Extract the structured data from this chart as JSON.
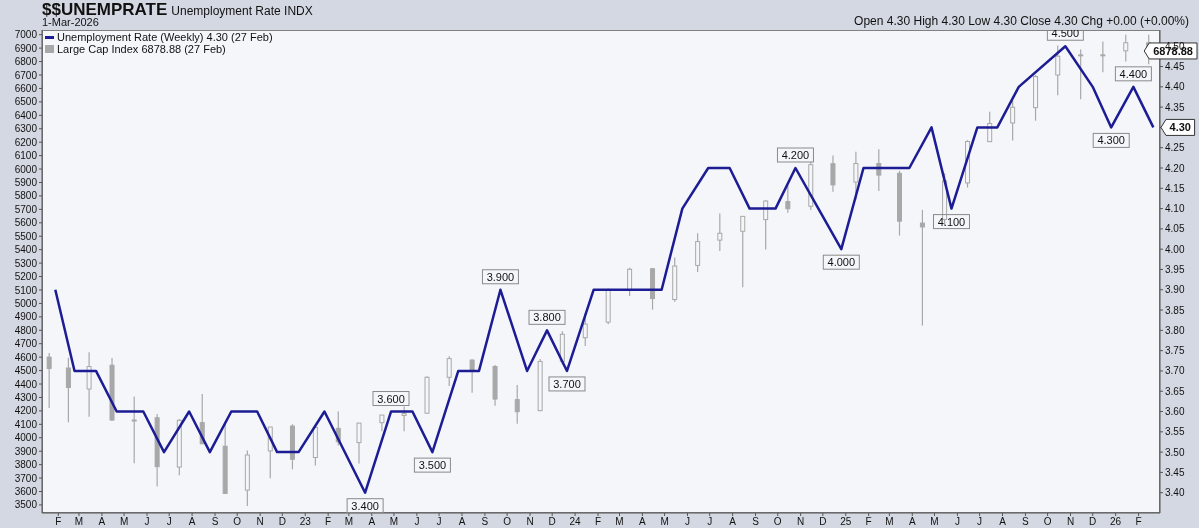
{
  "chart_data": {
    "type": "line",
    "title": "$$UNEMPRATE",
    "subtitle": "Unemployment Rate INDX",
    "annotations": [
      "1-Mar-2026",
      "Open 4.30 High 4.30 Low 4.30 Close 4.30 Chg +0.00 (+0.00%)",
      "4.30",
      "6878.88"
    ],
    "legend": "top left",
    "marker": "none",
    "xlim": [
      "2022-01-10",
      "2026-03-02"
    ],
    "xticks": [
      {
        "value": "2022-02-01",
        "label": "F"
      },
      {
        "value": "2022-03-01",
        "label": "M"
      },
      {
        "value": "2022-04-01",
        "label": "A"
      },
      {
        "value": "2022-05-01",
        "label": "M"
      },
      {
        "value": "2022-06-01",
        "label": "J"
      },
      {
        "value": "2022-07-01",
        "label": "J"
      },
      {
        "value": "2022-08-01",
        "label": "A"
      },
      {
        "value": "2022-09-01",
        "label": "S"
      },
      {
        "value": "2022-10-01",
        "label": "O"
      },
      {
        "value": "2022-11-01",
        "label": "N"
      },
      {
        "value": "2022-12-01",
        "label": "D"
      },
      {
        "value": "2023-01-01",
        "label": "23"
      },
      {
        "value": "2023-02-01",
        "label": "F"
      },
      {
        "value": "2023-03-01",
        "label": "M"
      },
      {
        "value": "2023-04-01",
        "label": "A"
      },
      {
        "value": "2023-05-01",
        "label": "M"
      },
      {
        "value": "2023-06-01",
        "label": "J"
      },
      {
        "value": "2023-07-01",
        "label": "J"
      },
      {
        "value": "2023-08-01",
        "label": "A"
      },
      {
        "value": "2023-09-01",
        "label": "S"
      },
      {
        "value": "2023-10-01",
        "label": "O"
      },
      {
        "value": "2023-11-01",
        "label": "N"
      },
      {
        "value": "2023-12-01",
        "label": "D"
      },
      {
        "value": "2024-01-01",
        "label": "24"
      },
      {
        "value": "2024-02-01",
        "label": "F"
      },
      {
        "value": "2024-03-01",
        "label": "M"
      },
      {
        "value": "2024-04-01",
        "label": "A"
      },
      {
        "value": "2024-05-01",
        "label": "M"
      },
      {
        "value": "2024-06-01",
        "label": "J"
      },
      {
        "value": "2024-07-01",
        "label": "J"
      },
      {
        "value": "2024-08-01",
        "label": "A"
      },
      {
        "value": "2024-09-01",
        "label": "S"
      },
      {
        "value": "2024-10-01",
        "label": "O"
      },
      {
        "value": "2024-11-01",
        "label": "N"
      },
      {
        "value": "2024-12-01",
        "label": "D"
      },
      {
        "value": "2025-01-01",
        "label": "25"
      },
      {
        "value": "2025-02-01",
        "label": "F"
      },
      {
        "value": "2025-03-01",
        "label": "M"
      },
      {
        "value": "2025-04-01",
        "label": "A"
      },
      {
        "value": "2025-05-01",
        "label": "M"
      },
      {
        "value": "2025-06-01",
        "label": "J"
      },
      {
        "value": "2025-07-01",
        "label": "J"
      },
      {
        "value": "2025-08-01",
        "label": "A"
      },
      {
        "value": "2025-09-01",
        "label": "S"
      },
      {
        "value": "2025-10-01",
        "label": "O"
      },
      {
        "value": "2025-11-01",
        "label": "N"
      },
      {
        "value": "2025-12-01",
        "label": "D"
      },
      {
        "value": "2026-01-01",
        "label": "26"
      },
      {
        "value": "2026-02-01",
        "label": "F"
      }
    ],
    "ylim": [
      3440,
      7035
    ],
    "yticks": [
      3500,
      3600,
      3700,
      3800,
      3900,
      4000,
      4100,
      4200,
      4300,
      4400,
      4500,
      4600,
      4700,
      4800,
      4900,
      5000,
      5100,
      5200,
      5300,
      5400,
      5500,
      5600,
      5700,
      5800,
      5900,
      6000,
      6100,
      6200,
      6300,
      6400,
      6500,
      6600,
      6700,
      6800,
      6900,
      7000
    ],
    "y2lim": [
      3.35,
      4.54
    ],
    "y2ticks": [
      {
        "value": 3.4,
        "label": "3.40"
      },
      {
        "value": 3.45,
        "label": "3.45"
      },
      {
        "value": 3.5,
        "label": "3.50"
      },
      {
        "value": 3.55,
        "label": "3.55"
      },
      {
        "value": 3.6,
        "label": "3.60"
      },
      {
        "value": 3.65,
        "label": "3.65"
      },
      {
        "value": 3.7,
        "label": "3.70"
      },
      {
        "value": 3.75,
        "label": "3.75"
      },
      {
        "value": 3.8,
        "label": "3.80"
      },
      {
        "value": 3.85,
        "label": "3.85"
      },
      {
        "value": 3.9,
        "label": "3.90"
      },
      {
        "value": 3.95,
        "label": "3.95"
      },
      {
        "value": 4.0,
        "label": "4.00"
      },
      {
        "value": 4.05,
        "label": "4.05"
      },
      {
        "value": 4.1,
        "label": "4.10"
      },
      {
        "value": 4.15,
        "label": "4.15"
      },
      {
        "value": 4.2,
        "label": "4.20"
      },
      {
        "value": 4.25,
        "label": "4.25"
      },
      {
        "value": 4.3,
        "label": null
      },
      {
        "value": 4.35,
        "label": "4.35"
      },
      {
        "value": 4.4,
        "label": "4.40"
      },
      {
        "value": 4.45,
        "label": "4.45"
      },
      {
        "value": 4.5,
        "label": "4.50"
      }
    ],
    "series": [
      {
        "name": "Unemployment Rate (Weekly) 4.30 (27 Feb)",
        "color": "#1c1c94",
        "axis": "y2",
        "line_style": "solid",
        "x": [
          "2022-01-28",
          "2022-02-23",
          "2022-03-24",
          "2022-04-21",
          "2022-05-27",
          "2022-06-24",
          "2022-07-28",
          "2022-08-25",
          "2022-09-23",
          "2022-10-28",
          "2022-11-24",
          "2022-12-23",
          "2023-01-27",
          "2023-03-23",
          "2023-04-27",
          "2023-05-26",
          "2023-06-22",
          "2023-07-27",
          "2023-08-24",
          "2023-09-22",
          "2023-10-28",
          "2023-11-24",
          "2023-12-21",
          "2024-01-26",
          "2024-04-27",
          "2024-05-25",
          "2024-06-29",
          "2024-07-28",
          "2024-08-24",
          "2024-09-28",
          "2024-10-25",
          "2024-11-25",
          "2024-12-26",
          "2025-01-25",
          "2025-03-28",
          "2025-04-27",
          "2025-05-24",
          "2025-06-28",
          "2025-07-25",
          "2025-08-23",
          "2025-10-25",
          "2025-12-01",
          "2025-12-26",
          "2026-01-25",
          "2026-02-21"
        ],
        "values": [
          3.9,
          3.7,
          3.7,
          3.6,
          3.6,
          3.5,
          3.6,
          3.5,
          3.6,
          3.6,
          3.5,
          3.5,
          3.6,
          3.4,
          3.6,
          3.6,
          3.5,
          3.7,
          3.7,
          3.9,
          3.7,
          3.8,
          3.7,
          3.9,
          3.9,
          4.1,
          4.2,
          4.2,
          4.1,
          4.1,
          4.2,
          4.1,
          4.0,
          4.2,
          4.2,
          4.3,
          4.1,
          4.3,
          4.3,
          4.4,
          4.5,
          4.4,
          4.3,
          4.4,
          4.3
        ],
        "value_labels": [
          null,
          null,
          null,
          null,
          null,
          null,
          null,
          null,
          null,
          null,
          null,
          null,
          null,
          "3.400",
          "3.600",
          null,
          "3.500",
          null,
          null,
          "3.900",
          null,
          "3.800",
          "3.700",
          null,
          null,
          null,
          null,
          null,
          null,
          null,
          "4.200",
          null,
          "4.000",
          null,
          null,
          null,
          "4.100",
          null,
          null,
          null,
          "4.500",
          null,
          "4.300",
          "4.400",
          null
        ]
      },
      {
        "type": "candlestick",
        "name": "Large Cap Index 6878.88 (27 Feb)",
        "color": "#a8a8a8",
        "x": [
          "2022-01-20",
          "2022-02-15",
          "2022-03-15",
          "2022-04-15",
          "2022-05-15",
          "2022-06-15",
          "2022-07-15",
          "2022-08-15",
          "2022-09-15",
          "2022-10-15",
          "2022-11-15",
          "2022-12-15",
          "2023-01-15",
          "2023-02-15",
          "2023-03-15",
          "2023-04-15",
          "2023-05-15",
          "2023-06-15",
          "2023-07-15",
          "2023-08-15",
          "2023-09-15",
          "2023-10-15",
          "2023-11-15",
          "2023-12-15",
          "2024-01-15",
          "2024-02-15",
          "2024-03-15",
          "2024-04-15",
          "2024-05-15",
          "2024-06-15",
          "2024-07-15",
          "2024-08-15",
          "2024-09-15",
          "2024-10-15",
          "2024-11-15",
          "2024-12-15",
          "2025-01-15",
          "2025-02-15",
          "2025-03-15",
          "2025-04-15",
          "2025-05-15",
          "2025-06-15",
          "2025-07-15",
          "2025-08-15",
          "2025-09-15",
          "2025-10-15",
          "2025-11-15",
          "2025-12-15",
          "2026-01-15",
          "2026-02-15"
        ],
        "ohlc": [
          [
            4600,
            4630,
            4222,
            4516
          ],
          [
            4519,
            4595,
            4115,
            4374
          ],
          [
            4363,
            4637,
            4157,
            4530
          ],
          [
            4540,
            4593,
            4124,
            4132
          ],
          [
            4130,
            4307,
            3811,
            4132
          ],
          [
            4149,
            4177,
            3637,
            3785
          ],
          [
            3782,
            4140,
            3721,
            4130
          ],
          [
            4113,
            4325,
            3955,
            3955
          ],
          [
            3937,
            4119,
            3584,
            3586
          ],
          [
            3610,
            3906,
            3492,
            3872
          ],
          [
            3902,
            4080,
            3699,
            4080
          ],
          [
            4087,
            4101,
            3765,
            3840
          ],
          [
            3853,
            4095,
            3794,
            4077
          ],
          [
            4070,
            4195,
            3943,
            3970
          ],
          [
            3964,
            4110,
            3809,
            4109
          ],
          [
            4112,
            4170,
            4049,
            4169
          ],
          [
            4166,
            4232,
            4048,
            4180
          ],
          [
            4183,
            4458,
            4180,
            4450
          ],
          [
            4450,
            4607,
            4385,
            4589
          ],
          [
            4578,
            4584,
            4335,
            4508
          ],
          [
            4530,
            4541,
            4238,
            4288
          ],
          [
            4284,
            4393,
            4104,
            4194
          ],
          [
            4202,
            4587,
            4197,
            4568
          ],
          [
            4568,
            4793,
            4546,
            4770
          ],
          [
            4745,
            4931,
            4683,
            4846
          ],
          [
            4861,
            5111,
            4845,
            5096
          ],
          [
            5098,
            5265,
            5056,
            5254
          ],
          [
            5258,
            5264,
            4953,
            5036
          ],
          [
            5029,
            5342,
            5012,
            5278
          ],
          [
            5283,
            5523,
            5234,
            5460
          ],
          [
            5471,
            5670,
            5391,
            5522
          ],
          [
            5537,
            5651,
            5120,
            5648
          ],
          [
            5624,
            5768,
            5402,
            5762
          ],
          [
            5758,
            5878,
            5675,
            5705
          ],
          [
            5723,
            6053,
            5696,
            6032
          ],
          [
            6040,
            6100,
            5832,
            5882
          ],
          [
            5903,
            6129,
            5773,
            6041
          ],
          [
            6041,
            6147,
            5837,
            5955
          ],
          [
            5968,
            5987,
            5505,
            5612
          ],
          [
            5598,
            5696,
            4835,
            5569
          ],
          [
            5625,
            5968,
            5578,
            5912
          ],
          [
            5897,
            6215,
            5862,
            6205
          ],
          [
            6204,
            6427,
            6201,
            6339
          ],
          [
            6343,
            6508,
            6212,
            6460
          ],
          [
            6457,
            6700,
            6360,
            6688
          ],
          [
            6700,
            6920,
            6550,
            6840
          ],
          [
            6850,
            6890,
            6520,
            6850
          ],
          [
            6850,
            6950,
            6720,
            6845
          ],
          [
            6880,
            7000,
            6800,
            6940
          ],
          [
            6940,
            7000,
            6780,
            6879
          ]
        ]
      }
    ]
  }
}
